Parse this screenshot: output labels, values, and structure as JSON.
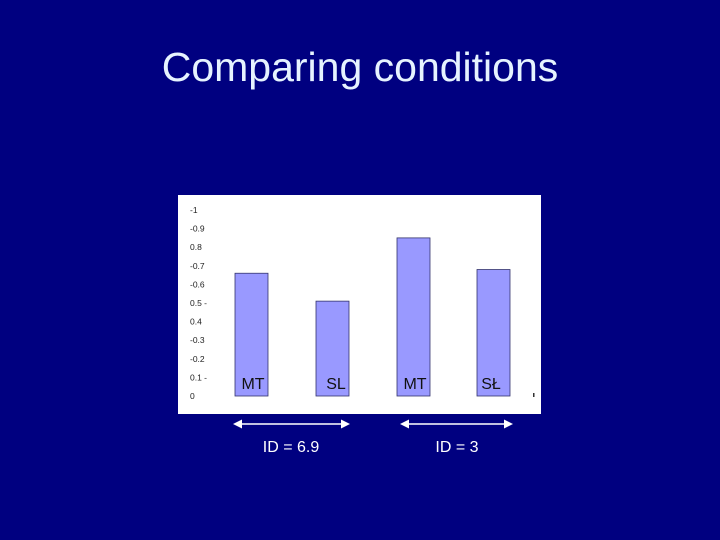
{
  "slide": {
    "title": "Comparing conditions"
  },
  "chart_data": {
    "type": "bar",
    "categories": [
      "MT",
      "SL",
      "MT",
      "SŁ"
    ],
    "values": [
      0.66,
      0.51,
      0.85,
      0.68
    ],
    "ylim": [
      0,
      1
    ],
    "yticks": [
      "0",
      "0.1 -",
      "-0.2",
      "-0.3",
      "0.4",
      "0.5 -",
      "-0.6",
      "-0.7",
      "0.8",
      "-0.9",
      "-1"
    ],
    "groups": [
      {
        "label": "ID = 6.9"
      },
      {
        "label": "ID = 3"
      }
    ],
    "grid": false,
    "colors": {
      "bar": "#9999ff",
      "bar_border": "#33336b",
      "plot_bg": "#ffffff",
      "arrow": "#ffffff"
    }
  }
}
